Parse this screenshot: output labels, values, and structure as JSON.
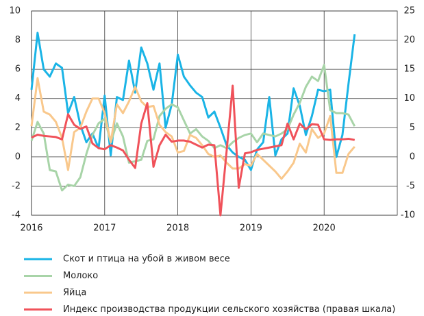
{
  "chart_data": {
    "type": "line",
    "x": [
      2016,
      2016.083,
      2016.167,
      2016.25,
      2016.333,
      2016.417,
      2016.5,
      2016.583,
      2016.667,
      2016.75,
      2016.833,
      2016.917,
      2017,
      2017.083,
      2017.167,
      2017.25,
      2017.333,
      2017.417,
      2017.5,
      2017.583,
      2017.667,
      2017.75,
      2017.833,
      2017.917,
      2018,
      2018.083,
      2018.167,
      2018.25,
      2018.333,
      2018.417,
      2018.5,
      2018.583,
      2018.667,
      2018.75,
      2018.833,
      2018.917,
      2019,
      2019.083,
      2019.167,
      2019.25,
      2019.333,
      2019.417,
      2019.5,
      2019.583,
      2019.667,
      2019.75,
      2019.833,
      2019.917,
      2020,
      2020.083,
      2020.167,
      2020.25,
      2020.333,
      2020.417
    ],
    "xlim": [
      2016,
      2021
    ],
    "xticks": [
      2016,
      2017,
      2018,
      2019,
      2020
    ],
    "ylim": [
      -4,
      10
    ],
    "yticks": [
      -4,
      -2,
      0,
      2,
      4,
      6,
      8,
      10
    ],
    "y2lim": [
      -10,
      25
    ],
    "y2ticks": [
      -10,
      -5,
      0,
      5,
      10,
      15,
      20,
      25
    ],
    "grid": true,
    "series": [
      {
        "name": "Скот и птица на убой в живом весе",
        "color": "#1ab4e6",
        "values": [
          4.6,
          8.5,
          6.0,
          5.5,
          6.4,
          6.1,
          3.0,
          4.1,
          2.2,
          1.0,
          1.6,
          0.6,
          4.2,
          0.1,
          4.1,
          3.9,
          6.6,
          4.4,
          7.5,
          6.4,
          4.6,
          6.4,
          2.0,
          3.6,
          7.0,
          5.5,
          4.9,
          4.4,
          4.1,
          2.7,
          3.1,
          2.0,
          0.8,
          0.3,
          0.0,
          -0.2,
          -0.9,
          0.5,
          1.0,
          4.1,
          0.1,
          1.2,
          1.6,
          4.7,
          3.5,
          1.5,
          2.8,
          4.6,
          4.5,
          4.6,
          0.0,
          1.5,
          5.0,
          8.4
        ]
      },
      {
        "name": "Молоко",
        "color": "#a8d4a8",
        "values": [
          1.1,
          2.4,
          1.6,
          -0.9,
          -1.0,
          -2.3,
          -1.9,
          -2.0,
          -1.4,
          0.2,
          1.5,
          2.3,
          2.6,
          1.0,
          2.3,
          1.4,
          -0.4,
          -0.3,
          -0.2,
          1.1,
          1.2,
          2.8,
          3.3,
          3.6,
          3.4,
          2.5,
          1.6,
          1.9,
          1.4,
          1.1,
          0.6,
          0.8,
          0.6,
          1.0,
          1.3,
          1.5,
          1.6,
          1.0,
          1.6,
          1.5,
          1.4,
          1.6,
          1.9,
          2.9,
          3.7,
          4.8,
          5.5,
          5.2,
          6.3,
          3.2,
          3.0,
          3.0,
          2.9,
          2.1
        ]
      },
      {
        "name": "Яйца",
        "color": "#f9c88c",
        "values": [
          2.1,
          5.4,
          3.1,
          2.9,
          2.4,
          1.3,
          -0.9,
          1.7,
          2.0,
          3.1,
          4.0,
          4.0,
          3.0,
          1.0,
          3.6,
          3.0,
          3.8,
          4.8,
          3.8,
          3.4,
          3.5,
          2.2,
          1.7,
          1.4,
          0.3,
          0.4,
          1.5,
          1.3,
          0.8,
          0.2,
          0.0,
          0.1,
          -0.4,
          -0.8,
          -0.8,
          -0.5,
          -0.6,
          0.2,
          -0.2,
          -0.6,
          -1.0,
          -1.5,
          -1.0,
          -0.4,
          0.9,
          0.3,
          1.9,
          1.3,
          1.6,
          2.8,
          -1.1,
          -1.1,
          0.2,
          0.7
        ]
      },
      {
        "name": "Индекс производства продукции сельского хозяйства (правая шкала)",
        "color": "#f0525a",
        "axis": "y2",
        "values": [
          3.3,
          3.8,
          3.6,
          3.5,
          3.4,
          3.0,
          7.3,
          5.5,
          4.8,
          5.2,
          2.3,
          1.5,
          1.3,
          2.0,
          1.6,
          1.1,
          -0.5,
          -1.9,
          5.7,
          9.2,
          -1.7,
          2.0,
          3.8,
          2.6,
          2.8,
          2.8,
          2.6,
          2.1,
          1.6,
          2.1,
          2.0,
          -10.0,
          1.0,
          12.2,
          -5.3,
          0.6,
          0.8,
          1.2,
          1.4,
          1.6,
          1.8,
          2.0,
          5.7,
          3.0,
          5.7,
          4.7,
          5.6,
          5.5,
          3.0,
          2.9,
          3.0,
          3.0,
          3.1,
          2.9
        ]
      }
    ]
  }
}
